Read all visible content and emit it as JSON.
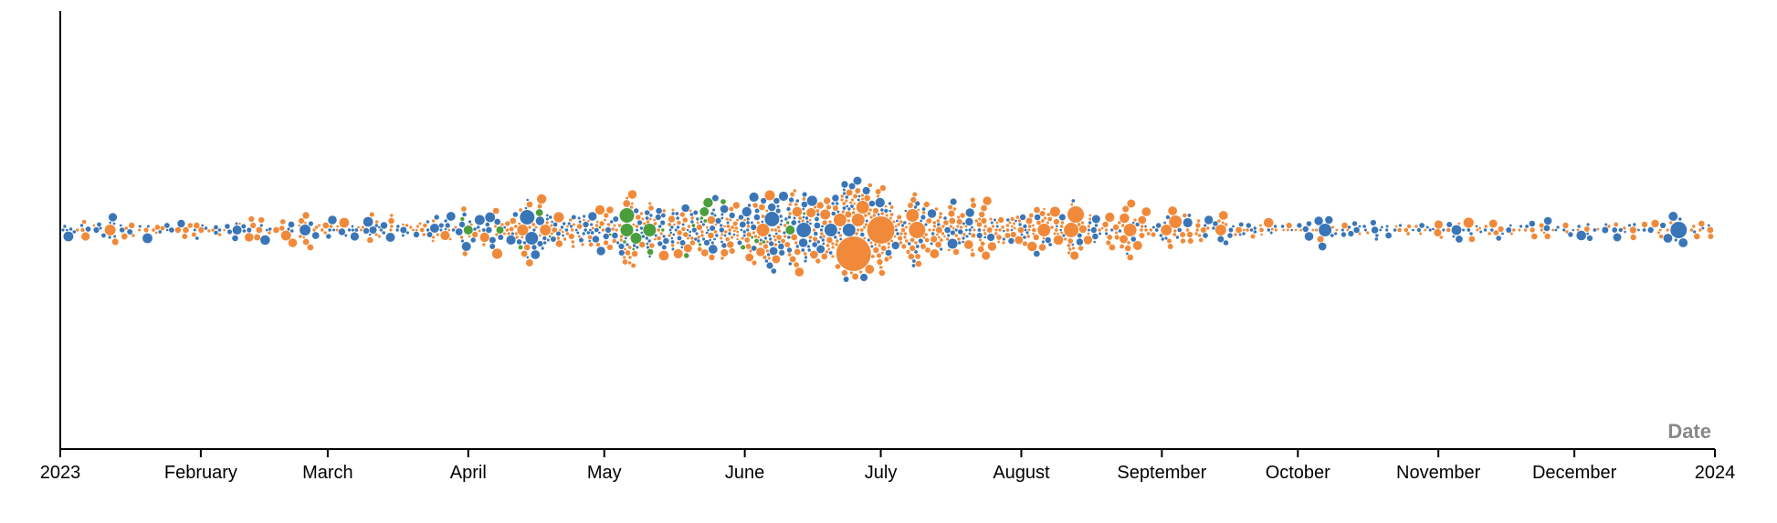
{
  "chart_data": {
    "type": "scatter",
    "subtype": "beeswarm",
    "title": "",
    "xlabel": "Date",
    "ylabel": "",
    "x_domain": [
      "2023-01-01",
      "2024-01-01"
    ],
    "x_ticks": [
      {
        "date": "2023-01-01",
        "label": "2023"
      },
      {
        "date": "2023-02-01",
        "label": "February"
      },
      {
        "date": "2023-03-01",
        "label": "March"
      },
      {
        "date": "2023-04-01",
        "label": "April"
      },
      {
        "date": "2023-05-01",
        "label": "May"
      },
      {
        "date": "2023-06-01",
        "label": "June"
      },
      {
        "date": "2023-07-01",
        "label": "July"
      },
      {
        "date": "2023-08-01",
        "label": "August"
      },
      {
        "date": "2023-09-01",
        "label": "September"
      },
      {
        "date": "2023-10-01",
        "label": "October"
      },
      {
        "date": "2023-11-01",
        "label": "November"
      },
      {
        "date": "2023-12-01",
        "label": "December"
      },
      {
        "date": "2024-01-01",
        "label": "2024"
      }
    ],
    "grid": false,
    "legend": "none",
    "colors": [
      "#3a76b7",
      "#f08a3a",
      "#4a9e3b"
    ],
    "dot_size_range": [
      1,
      20
    ],
    "emphasized_points": [
      {
        "date": "2023-01-12",
        "color_index": 1,
        "size": 6
      },
      {
        "date": "2023-02-09",
        "color_index": 0,
        "size": 5
      },
      {
        "date": "2023-02-24",
        "color_index": 0,
        "size": 6
      },
      {
        "date": "2023-03-11",
        "color_index": 0,
        "size": 4
      },
      {
        "date": "2023-04-01",
        "color_index": 2,
        "size": 5
      },
      {
        "date": "2023-04-08",
        "color_index": 2,
        "size": 4
      },
      {
        "date": "2023-04-13",
        "color_index": 1,
        "size": 6
      },
      {
        "date": "2023-04-14",
        "color_index": 0,
        "size": 8
      },
      {
        "date": "2023-04-15",
        "color_index": 0,
        "size": 7
      },
      {
        "date": "2023-04-18",
        "color_index": 1,
        "size": 6
      },
      {
        "date": "2023-05-06",
        "color_index": 2,
        "size": 7
      },
      {
        "date": "2023-05-06",
        "color_index": 2,
        "size": 8
      },
      {
        "date": "2023-05-08",
        "color_index": 2,
        "size": 6
      },
      {
        "date": "2023-05-11",
        "color_index": 2,
        "size": 7
      },
      {
        "date": "2023-06-05",
        "color_index": 1,
        "size": 7
      },
      {
        "date": "2023-06-07",
        "color_index": 0,
        "size": 8
      },
      {
        "date": "2023-06-11",
        "color_index": 2,
        "size": 5
      },
      {
        "date": "2023-06-14",
        "color_index": 0,
        "size": 8
      },
      {
        "date": "2023-06-20",
        "color_index": 0,
        "size": 7
      },
      {
        "date": "2023-06-22",
        "color_index": 1,
        "size": 7
      },
      {
        "date": "2023-06-24",
        "color_index": 0,
        "size": 7
      },
      {
        "date": "2023-06-25",
        "color_index": 1,
        "size": 19
      },
      {
        "date": "2023-06-26",
        "color_index": 1,
        "size": 7
      },
      {
        "date": "2023-06-27",
        "color_index": 1,
        "size": 7
      },
      {
        "date": "2023-07-01",
        "color_index": 1,
        "size": 15
      },
      {
        "date": "2023-07-09",
        "color_index": 1,
        "size": 9
      },
      {
        "date": "2023-07-08",
        "color_index": 1,
        "size": 7
      },
      {
        "date": "2023-08-06",
        "color_index": 1,
        "size": 7
      },
      {
        "date": "2023-08-12",
        "color_index": 1,
        "size": 8
      },
      {
        "date": "2023-08-13",
        "color_index": 1,
        "size": 9
      },
      {
        "date": "2023-08-25",
        "color_index": 1,
        "size": 7
      },
      {
        "date": "2023-09-02",
        "color_index": 1,
        "size": 6
      },
      {
        "date": "2023-09-04",
        "color_index": 1,
        "size": 7
      },
      {
        "date": "2023-09-14",
        "color_index": 1,
        "size": 6
      },
      {
        "date": "2023-10-07",
        "color_index": 0,
        "size": 7
      },
      {
        "date": "2023-12-24",
        "color_index": 0,
        "size": 9
      }
    ]
  }
}
